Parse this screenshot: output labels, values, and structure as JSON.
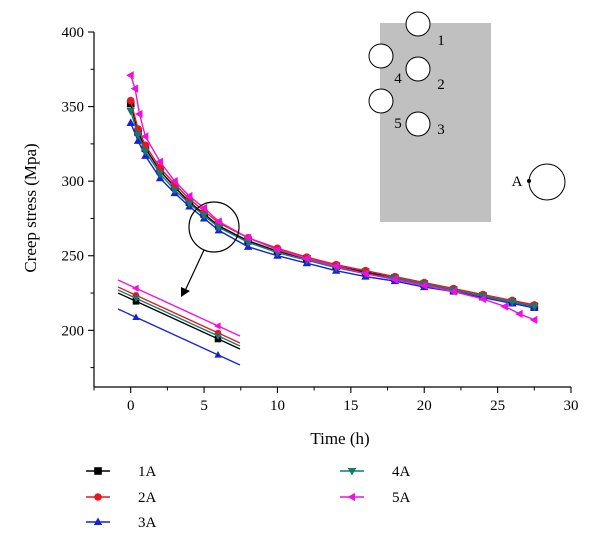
{
  "chart_data": {
    "type": "line",
    "xlabel": "Time (h)",
    "ylabel": "Creep stress (Mpa)",
    "xlim": [
      -2.5,
      30
    ],
    "ylim": [
      162,
      400
    ],
    "xticks": [
      0,
      5,
      10,
      15,
      20,
      25,
      30
    ],
    "yticks": [
      200,
      250,
      300,
      350,
      400
    ],
    "grid": false,
    "legend_position": "bottom",
    "series": [
      {
        "name": "1A",
        "color": "#000000",
        "marker": "square",
        "x": [
          0,
          0.5,
          1,
          2,
          3,
          4,
          5,
          6,
          8,
          10,
          12,
          14,
          16,
          18,
          20,
          22,
          24,
          26,
          27.5
        ],
        "y": [
          352,
          333,
          322,
          307,
          296,
          286,
          278,
          270,
          260,
          253,
          248,
          243,
          239,
          235,
          231,
          227,
          223,
          219,
          216
        ]
      },
      {
        "name": "2A",
        "color": "#e8171e",
        "marker": "circle",
        "x": [
          0,
          0.5,
          1,
          2,
          3,
          4,
          5,
          6,
          8,
          10,
          12,
          14,
          16,
          18,
          20,
          22,
          24,
          26,
          27.5
        ],
        "y": [
          354,
          335,
          324,
          309,
          298,
          288,
          280,
          272,
          262,
          255,
          249,
          244,
          240,
          236,
          232,
          228,
          224,
          220,
          217
        ]
      },
      {
        "name": "3A",
        "color": "#1722d6",
        "marker": "triangle-up",
        "x": [
          0,
          0.5,
          1,
          2,
          3,
          4,
          5,
          6,
          8,
          10,
          12,
          14,
          16,
          18,
          20,
          22,
          24,
          26,
          27.5
        ],
        "y": [
          339,
          327,
          317,
          302,
          292,
          283,
          275,
          267,
          256,
          250,
          245,
          240,
          236,
          233,
          229,
          226,
          222,
          218,
          215
        ]
      },
      {
        "name": "4A",
        "color": "#127a72",
        "marker": "triangle-down",
        "x": [
          0,
          0.5,
          1,
          2,
          3,
          4,
          5,
          6,
          8,
          10,
          12,
          14,
          16,
          18,
          20,
          22,
          24,
          26,
          27.5
        ],
        "y": [
          347,
          331,
          320,
          305,
          294,
          285,
          277,
          269,
          259,
          252,
          247,
          242,
          238,
          235,
          231,
          227,
          223,
          219,
          216
        ]
      },
      {
        "name": "5A",
        "color": "#f20ee0",
        "marker": "triangle-left",
        "x": [
          0,
          0.3,
          0.6,
          1,
          2,
          3,
          4,
          5,
          6,
          8,
          10,
          12,
          14,
          16,
          18,
          20,
          22,
          24,
          25.5,
          26.5,
          27.5
        ],
        "y": [
          371,
          362,
          345,
          330,
          313,
          300,
          290,
          282,
          273,
          262,
          254,
          248,
          243,
          238,
          234,
          230,
          226,
          221,
          216,
          211,
          207
        ]
      }
    ],
    "inset_labels": [
      "1",
      "2",
      "3",
      "4",
      "5",
      "A"
    ]
  }
}
